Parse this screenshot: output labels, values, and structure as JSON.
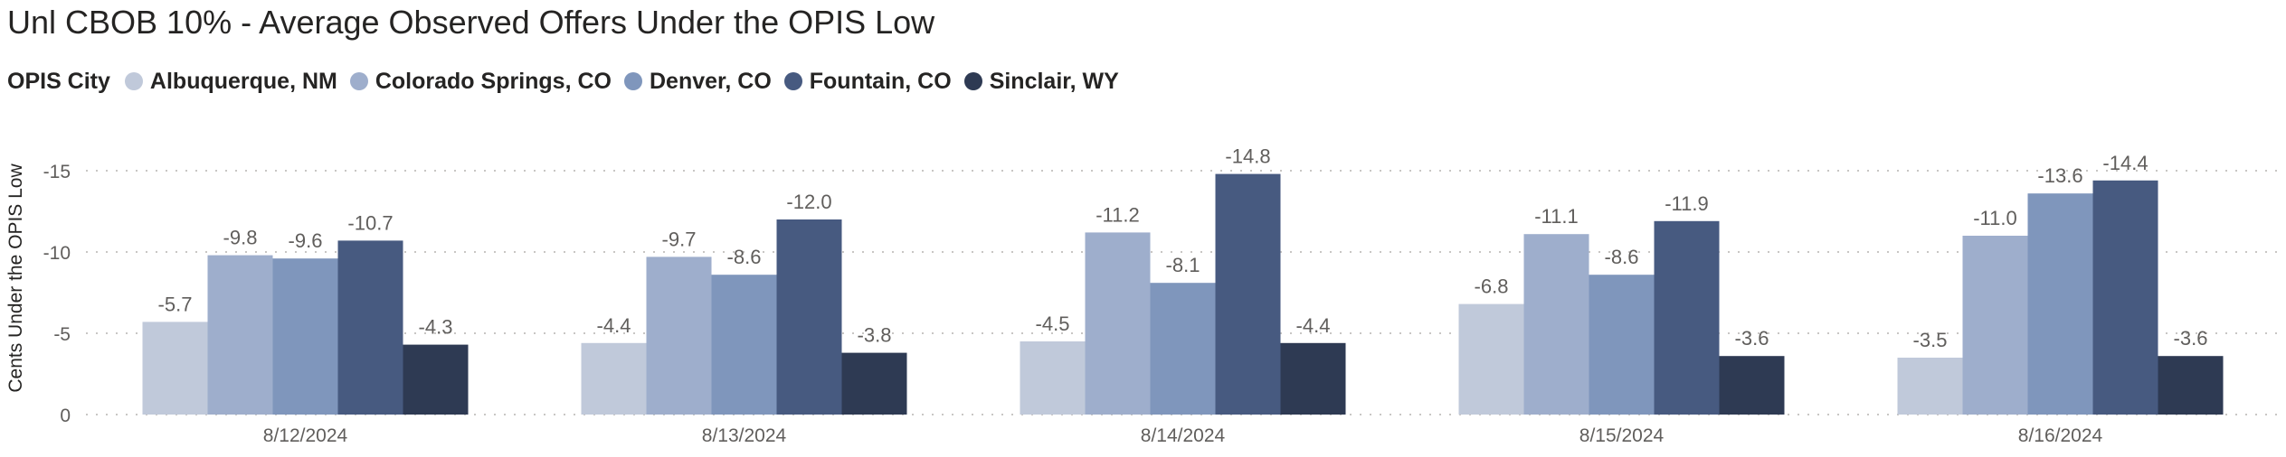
{
  "chart_data": {
    "type": "bar",
    "title": "Unl CBOB 10% - Average Observed Offers Under the OPIS Low",
    "legend_title": "OPIS City",
    "legend_position": "top-left",
    "ylabel": "Cents Under the OPIS Low",
    "xlabel": "",
    "y_reversed": true,
    "ylim": [
      0,
      -17
    ],
    "y_ticks": [
      0,
      -5,
      -10,
      -15
    ],
    "y_tick_labels": [
      "0",
      "-5",
      "-10",
      "-15"
    ],
    "grid": true,
    "categories": [
      "8/12/2024",
      "8/13/2024",
      "8/14/2024",
      "8/15/2024",
      "8/16/2024"
    ],
    "series": [
      {
        "name": "Albuquerque, NM",
        "color": "#c0c9da",
        "values": [
          -5.7,
          -4.4,
          -4.5,
          -6.8,
          -3.5
        ],
        "labels": [
          "-5.7",
          "-4.4",
          "-4.5",
          "-6.8",
          "-3.5"
        ]
      },
      {
        "name": "Colorado Springs, CO",
        "color": "#9eaecc",
        "values": [
          -9.8,
          -9.7,
          -11.2,
          -11.1,
          -11.0
        ],
        "labels": [
          "-9.8",
          "-9.7",
          "-11.2",
          "-11.1",
          "-11.0"
        ]
      },
      {
        "name": "Denver, CO",
        "color": "#7f96bc",
        "values": [
          -9.6,
          -8.6,
          -8.1,
          -8.6,
          -13.6
        ],
        "labels": [
          "-9.6",
          "-8.6",
          "-8.1",
          "-8.6",
          "-13.6"
        ]
      },
      {
        "name": "Fountain, CO",
        "color": "#475a80",
        "values": [
          -10.7,
          -12.0,
          -14.8,
          -11.9,
          -14.4
        ],
        "labels": [
          "-10.7",
          "-12.0",
          "-14.8",
          "-11.9",
          "-14.4"
        ]
      },
      {
        "name": "Sinclair, WY",
        "color": "#2e3a53",
        "values": [
          -4.3,
          -3.8,
          -4.4,
          -3.6,
          -3.6
        ],
        "labels": [
          "-4.3",
          "-3.8",
          "-4.4",
          "-3.6",
          "-3.6"
        ]
      }
    ]
  }
}
